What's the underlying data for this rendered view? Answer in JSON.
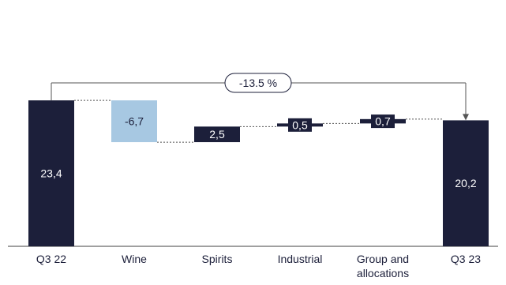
{
  "chart_data": {
    "type": "waterfall",
    "categories": [
      "Q3 22",
      "Wine",
      "Spirits",
      "Industrial",
      "Group and allocations",
      "Q3 23"
    ],
    "category_lines": [
      [
        "Q3 22"
      ],
      [
        "Wine"
      ],
      [
        "Spirits"
      ],
      [
        "Industrial"
      ],
      [
        "Group and",
        "allocations"
      ],
      [
        "Q3 23"
      ]
    ],
    "values": [
      23.4,
      -6.7,
      2.5,
      0.5,
      0.7,
      20.2
    ],
    "value_labels": [
      "23,4",
      "-6,7",
      "2,5",
      "0,5",
      "0,7",
      "20,2"
    ],
    "kinds": [
      "total",
      "delta",
      "delta",
      "delta",
      "delta",
      "total"
    ],
    "ylim": [
      0,
      32
    ],
    "bracket_label": "-13.5 %",
    "colors": {
      "total": "#1c1f3a",
      "negative": "#a7c8e2",
      "positive": "#1c1f3a",
      "axis": "#404040",
      "text": "#1c1f3a",
      "connector": "#555555"
    }
  }
}
